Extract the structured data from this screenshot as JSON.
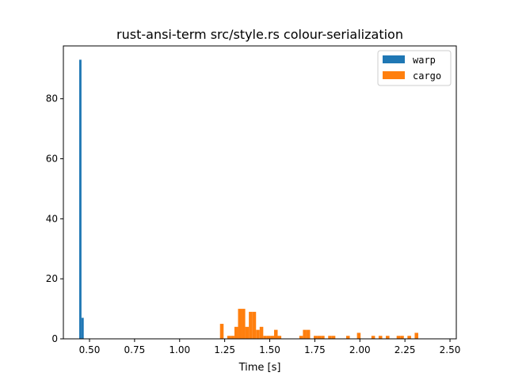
{
  "chart_data": {
    "type": "bar",
    "title": "rust-ansi-term src/style.rs colour-serialization",
    "xlabel": "Time [s]",
    "ylabel": "",
    "xlim": [
      0.355,
      2.535
    ],
    "ylim": [
      0,
      97.6
    ],
    "x_ticks": [
      0.5,
      0.75,
      1.0,
      1.25,
      1.5,
      1.75,
      2.0,
      2.25,
      2.5
    ],
    "x_tick_labels": [
      "0.50",
      "0.75",
      "1.00",
      "1.25",
      "1.50",
      "1.75",
      "2.00",
      "2.25",
      "2.50"
    ],
    "y_ticks": [
      0,
      20,
      40,
      60,
      80
    ],
    "y_tick_labels": [
      "0",
      "20",
      "40",
      "60",
      "80"
    ],
    "grid": false,
    "legend_position": "top-right",
    "series": [
      {
        "name": "warp",
        "color": "#1f77b4",
        "bars": [
          {
            "x0": 0.443,
            "x1": 0.4555,
            "count": 93
          },
          {
            "x0": 0.4555,
            "x1": 0.468,
            "count": 7
          }
        ]
      },
      {
        "name": "cargo",
        "color": "#ff7f0e",
        "bars": [
          {
            "x0": 1.224,
            "x1": 1.244,
            "count": 5
          },
          {
            "x0": 1.264,
            "x1": 1.284,
            "count": 1
          },
          {
            "x0": 1.284,
            "x1": 1.304,
            "count": 1
          },
          {
            "x0": 1.304,
            "x1": 1.324,
            "count": 4
          },
          {
            "x0": 1.324,
            "x1": 1.344,
            "count": 10
          },
          {
            "x0": 1.344,
            "x1": 1.364,
            "count": 10
          },
          {
            "x0": 1.364,
            "x1": 1.384,
            "count": 4
          },
          {
            "x0": 1.384,
            "x1": 1.404,
            "count": 9
          },
          {
            "x0": 1.404,
            "x1": 1.424,
            "count": 9
          },
          {
            "x0": 1.424,
            "x1": 1.444,
            "count": 3
          },
          {
            "x0": 1.444,
            "x1": 1.464,
            "count": 4
          },
          {
            "x0": 1.464,
            "x1": 1.484,
            "count": 1
          },
          {
            "x0": 1.484,
            "x1": 1.504,
            "count": 1
          },
          {
            "x0": 1.504,
            "x1": 1.524,
            "count": 1
          },
          {
            "x0": 1.524,
            "x1": 1.544,
            "count": 3
          },
          {
            "x0": 1.544,
            "x1": 1.564,
            "count": 1
          },
          {
            "x0": 1.664,
            "x1": 1.684,
            "count": 1
          },
          {
            "x0": 1.684,
            "x1": 1.704,
            "count": 3
          },
          {
            "x0": 1.704,
            "x1": 1.724,
            "count": 3
          },
          {
            "x0": 1.744,
            "x1": 1.764,
            "count": 1
          },
          {
            "x0": 1.764,
            "x1": 1.784,
            "count": 1
          },
          {
            "x0": 1.784,
            "x1": 1.804,
            "count": 1
          },
          {
            "x0": 1.824,
            "x1": 1.844,
            "count": 1
          },
          {
            "x0": 1.844,
            "x1": 1.864,
            "count": 1
          },
          {
            "x0": 1.924,
            "x1": 1.944,
            "count": 1
          },
          {
            "x0": 1.984,
            "x1": 2.004,
            "count": 2
          },
          {
            "x0": 2.064,
            "x1": 2.084,
            "count": 1
          },
          {
            "x0": 2.104,
            "x1": 2.124,
            "count": 1
          },
          {
            "x0": 2.144,
            "x1": 2.164,
            "count": 1
          },
          {
            "x0": 2.204,
            "x1": 2.224,
            "count": 1
          },
          {
            "x0": 2.224,
            "x1": 2.244,
            "count": 1
          },
          {
            "x0": 2.264,
            "x1": 2.284,
            "count": 1
          },
          {
            "x0": 2.304,
            "x1": 2.324,
            "count": 2
          }
        ]
      }
    ]
  }
}
